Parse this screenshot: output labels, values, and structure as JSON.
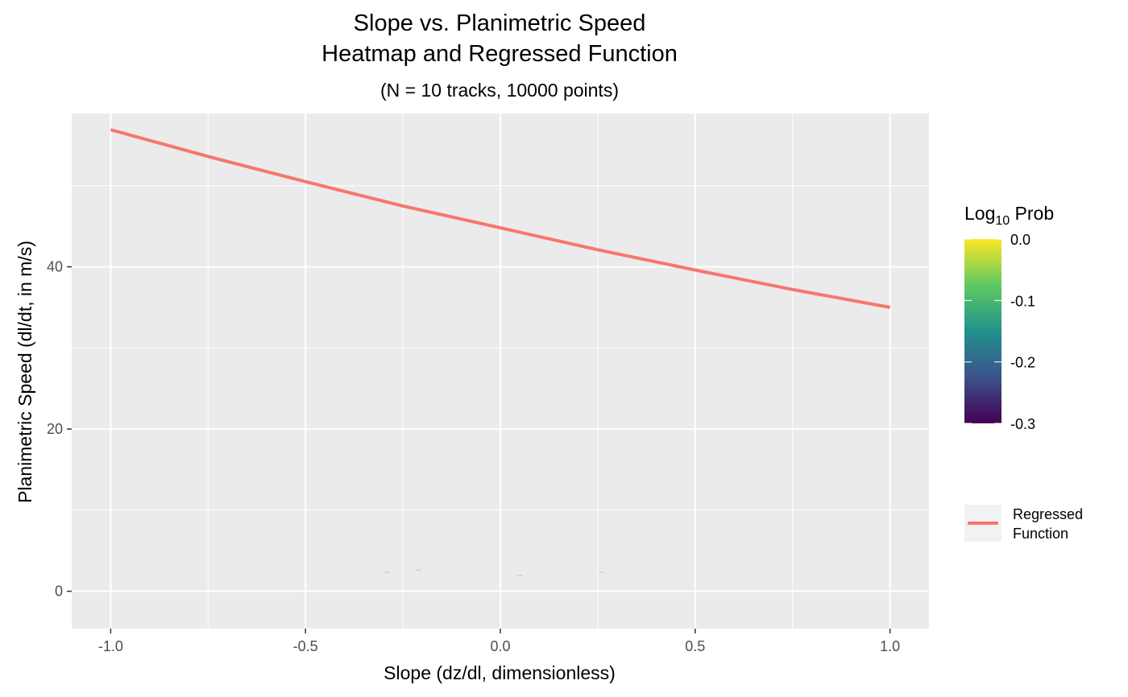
{
  "chart_data": {
    "type": "line",
    "title": "Slope vs. Planimetric Speed",
    "title_line2": "Heatmap and Regressed Function",
    "subtitle": "(N = 10 tracks, 10000 points)",
    "xlabel": "Slope (dz/dl, dimensionless)",
    "ylabel": "Planimetric Speed (dl/dt, in m/s)",
    "xlim": [
      -1.1,
      1.1
    ],
    "ylim": [
      -4.6,
      58.9
    ],
    "x_ticks": [
      -1.0,
      -0.5,
      0.0,
      0.5,
      1.0
    ],
    "x_tick_labels": [
      "-1.0",
      "-0.5",
      "0.0",
      "0.5",
      "1.0"
    ],
    "y_ticks": [
      0,
      20,
      40
    ],
    "y_tick_labels": [
      "0",
      "20",
      "40"
    ],
    "grid": true,
    "panel_background": "#ebebeb",
    "series": [
      {
        "name": "Regressed Function",
        "color": "#f8766d",
        "x": [
          -1.0,
          -0.75,
          -0.5,
          -0.25,
          0.0,
          0.25,
          0.5,
          0.75,
          1.0
        ],
        "y": [
          56.9,
          53.6,
          50.5,
          47.5,
          44.8,
          42.1,
          39.6,
          37.2,
          35.0
        ]
      }
    ],
    "heatmap_cells": [
      {
        "x": -0.29,
        "y": 2.3
      },
      {
        "x": -0.21,
        "y": 2.6
      },
      {
        "x": 0.05,
        "y": 1.9
      },
      {
        "x": 0.26,
        "y": 2.3
      }
    ],
    "legend": {
      "placement": "right",
      "colorbar": {
        "title": "Log",
        "title_sub": "10",
        "title_suffix": " Prob",
        "range": [
          -0.3,
          0.0
        ],
        "ticks": [
          0.0,
          -0.1,
          -0.2,
          -0.3
        ],
        "tick_labels": [
          "0.0",
          "-0.1",
          "-0.2",
          "-0.3"
        ],
        "colors": [
          "#440154",
          "#3b528b",
          "#21918c",
          "#5ec962",
          "#fde725"
        ]
      },
      "line_key": {
        "label_line1": "Regressed",
        "label_line2": "Function",
        "color": "#f8766d"
      }
    }
  }
}
